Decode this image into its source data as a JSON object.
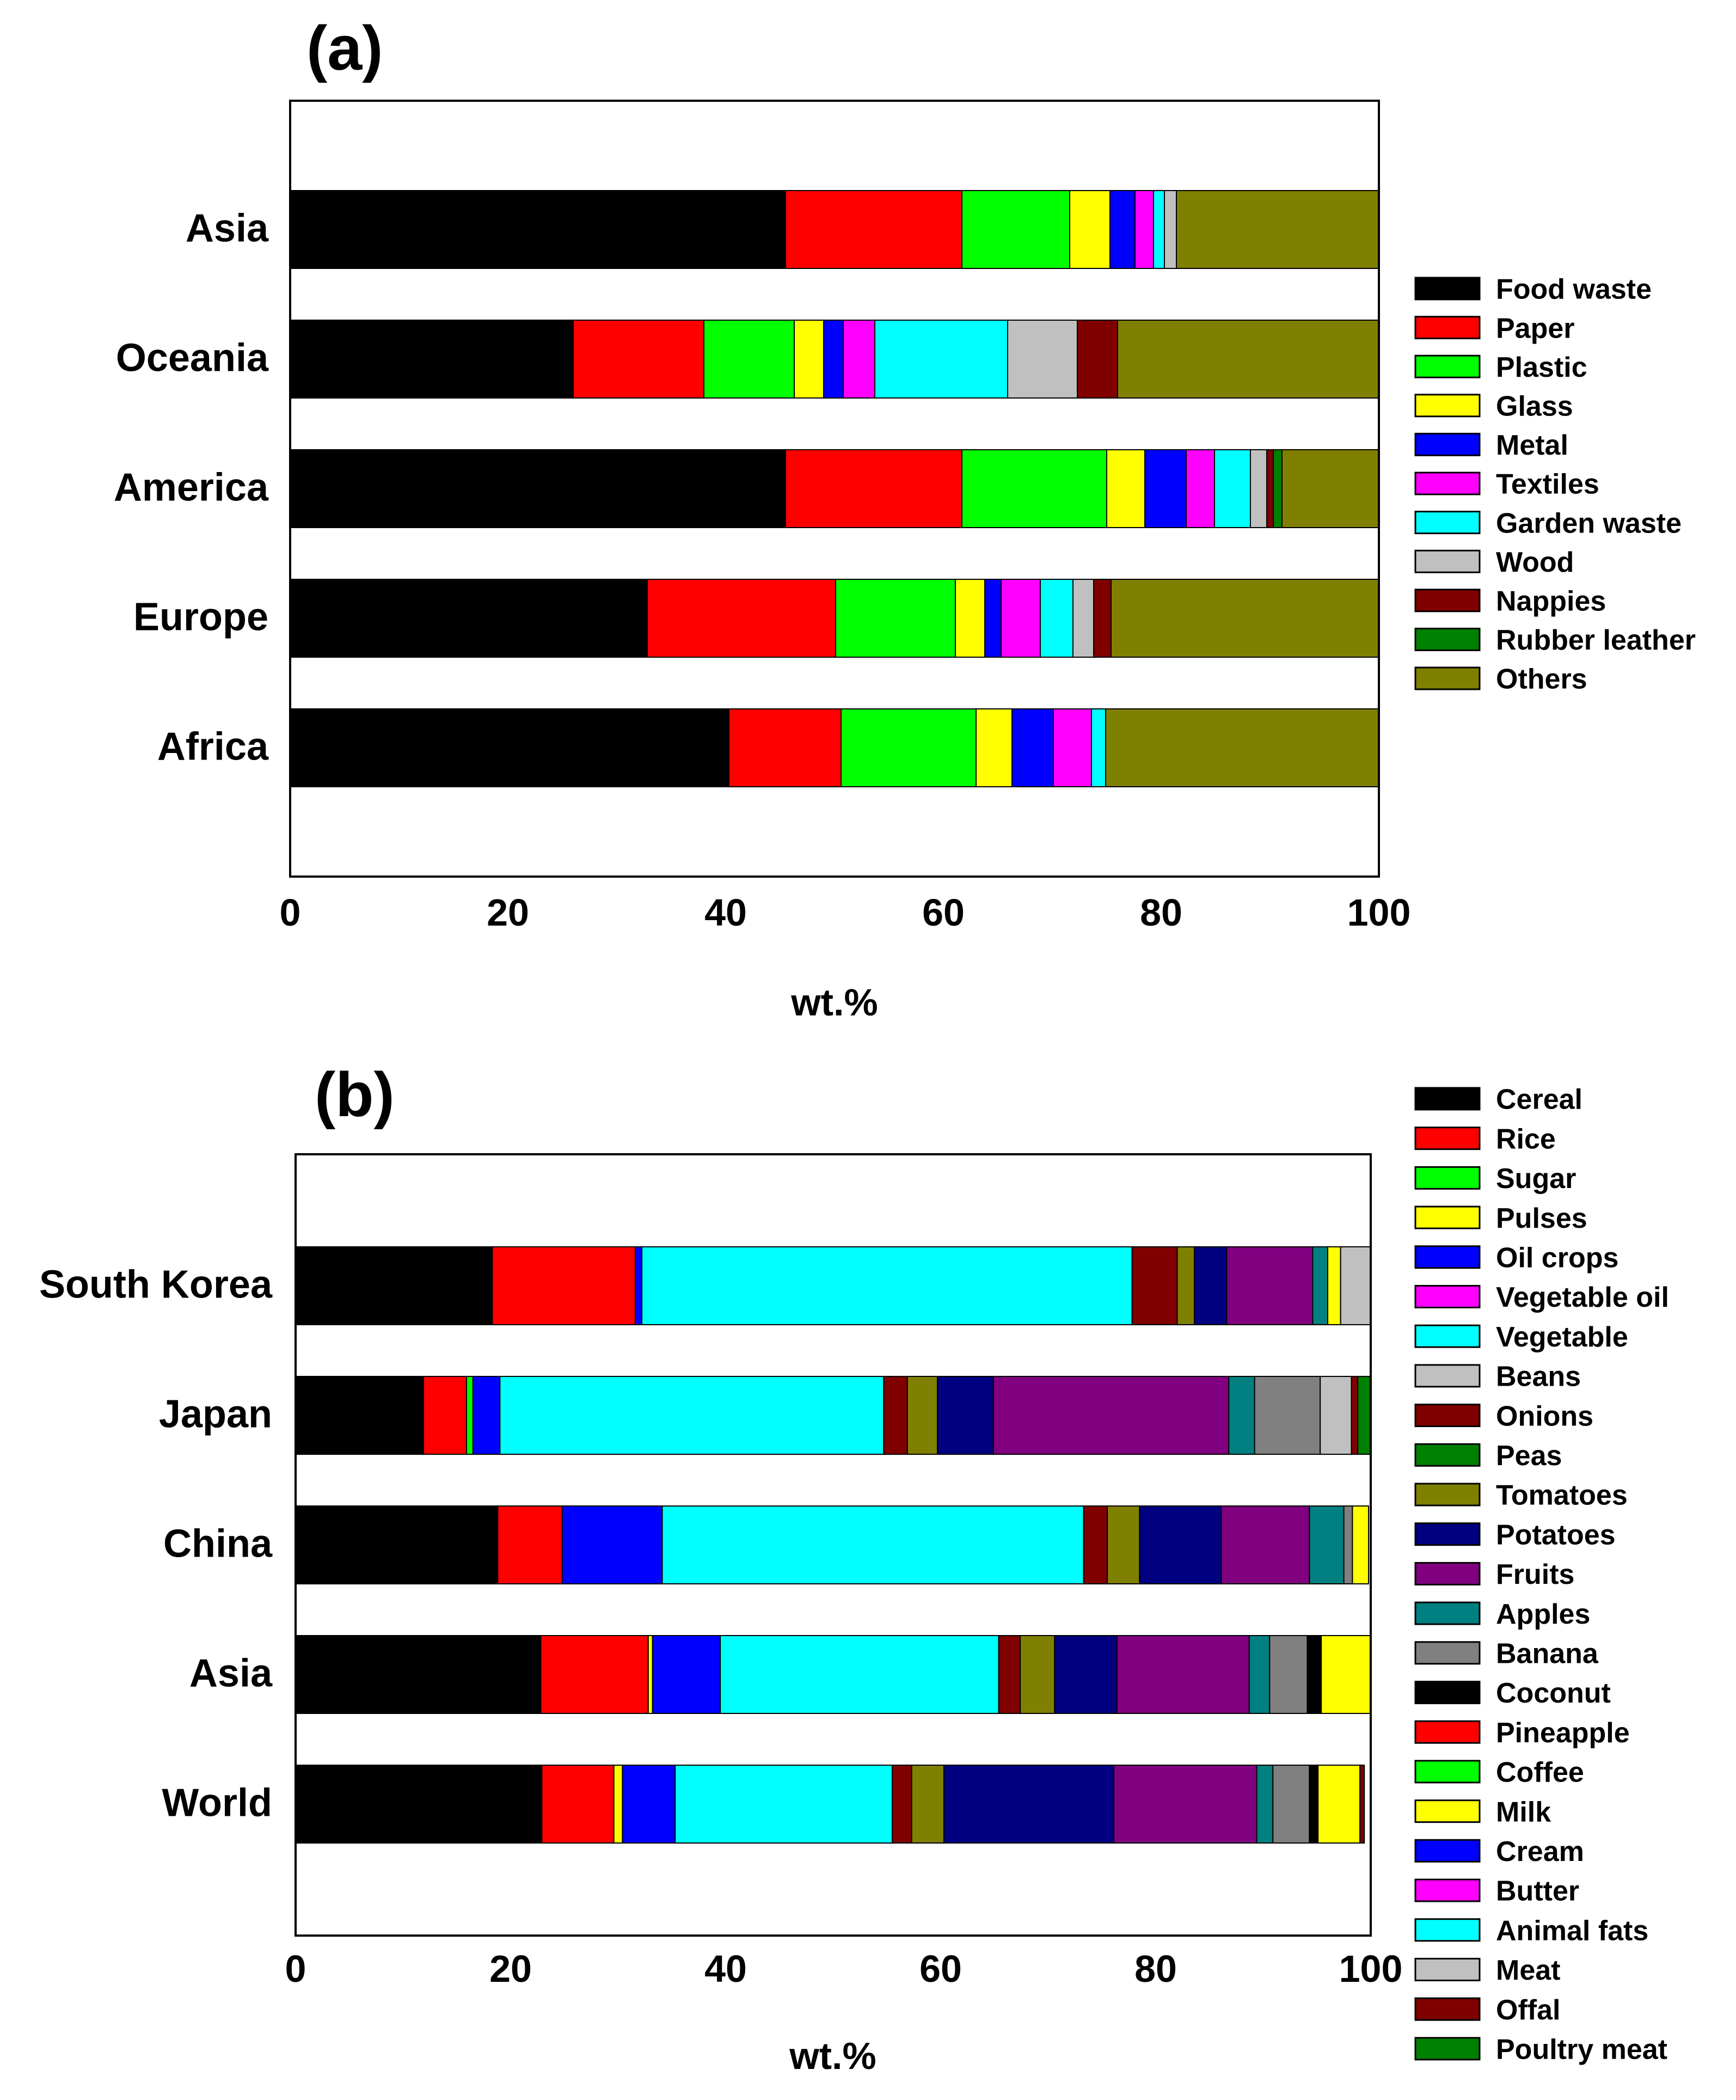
{
  "chart_data": [
    {
      "panel": "(a)",
      "type": "bar",
      "orientation": "horizontal",
      "stacked": true,
      "title": "",
      "xlabel": "wt.%",
      "ylabel": "",
      "xlim": [
        0,
        100
      ],
      "xticks": [
        "0",
        "20",
        "40",
        "60",
        "80",
        "100"
      ],
      "categories": [
        "Asia",
        "Oceania",
        "America",
        "Europe",
        "Africa"
      ],
      "series": [
        {
          "name": "Food waste",
          "color": "#000000",
          "values": [
            45.5,
            26.0,
            45.5,
            32.8,
            40.3
          ]
        },
        {
          "name": "Paper",
          "color": "#ff0000",
          "values": [
            16.2,
            12.0,
            16.2,
            17.3,
            10.3
          ]
        },
        {
          "name": "Plastic",
          "color": "#00ff00",
          "values": [
            9.9,
            8.3,
            13.3,
            11.0,
            12.4
          ]
        },
        {
          "name": "Glass",
          "color": "#ffff00",
          "values": [
            3.7,
            2.7,
            3.5,
            2.7,
            3.3
          ]
        },
        {
          "name": "Metal",
          "color": "#0000ff",
          "values": [
            2.3,
            1.8,
            3.8,
            1.5,
            3.8
          ]
        },
        {
          "name": "Textiles",
          "color": "#ff00ff",
          "values": [
            1.7,
            2.9,
            2.6,
            3.6,
            3.5
          ]
        },
        {
          "name": "Garden waste",
          "color": "#00ffff",
          "values": [
            1.0,
            12.2,
            3.3,
            3.0,
            1.3
          ]
        },
        {
          "name": "Wood",
          "color": "#c0c0c0",
          "values": [
            1.1,
            6.4,
            1.5,
            1.9,
            0.0
          ]
        },
        {
          "name": "Nappies",
          "color": "#800000",
          "values": [
            0.0,
            3.7,
            0.6,
            1.6,
            0.0
          ]
        },
        {
          "name": "Rubber leather",
          "color": "#008000",
          "values": [
            0.0,
            0.0,
            0.8,
            0.0,
            0.0
          ]
        },
        {
          "name": "Others",
          "color": "#808000",
          "values": [
            18.6,
            24.0,
            8.9,
            24.6,
            25.1
          ]
        }
      ]
    },
    {
      "panel": "(b)",
      "type": "bar",
      "orientation": "horizontal",
      "stacked": true,
      "title": "",
      "xlabel": "wt.%",
      "ylabel": "",
      "xlim": [
        0,
        100
      ],
      "xticks": [
        "0",
        "20",
        "40",
        "60",
        "80",
        "100"
      ],
      "categories": [
        "South Korea",
        "Japan",
        "China",
        "Asia",
        "World"
      ],
      "series": [
        {
          "name": "Cereal",
          "color": "#000000",
          "values": [
            18.3,
            11.9,
            18.8,
            22.8,
            22.9
          ]
        },
        {
          "name": "Rice",
          "color": "#ff0000",
          "values": [
            13.3,
            4.0,
            6.0,
            10.0,
            6.7
          ]
        },
        {
          "name": "Sugar",
          "color": "#00ff00",
          "values": [
            0.0,
            0.6,
            0.0,
            0.0,
            0.0
          ]
        },
        {
          "name": "Pulses",
          "color": "#ffff00",
          "values": [
            0.0,
            0.0,
            0.0,
            0.4,
            0.8
          ]
        },
        {
          "name": "Oil crops",
          "color": "#0000ff",
          "values": [
            0.6,
            2.5,
            9.3,
            6.3,
            4.9
          ]
        },
        {
          "name": "Vegetable oil",
          "color": "#ff00ff",
          "values": [
            0.0,
            0.0,
            0.0,
            0.0,
            0.0
          ]
        },
        {
          "name": "Vegetable",
          "color": "#00ffff",
          "values": [
            45.6,
            35.7,
            39.2,
            25.9,
            20.2
          ]
        },
        {
          "name": "Beans",
          "color": "#c0c0c0",
          "values": [
            0.0,
            0.0,
            0.0,
            0.0,
            0.0
          ]
        },
        {
          "name": "Onions",
          "color": "#800000",
          "values": [
            4.2,
            2.2,
            2.2,
            2.0,
            1.8
          ]
        },
        {
          "name": "Peas",
          "color": "#008000",
          "values": [
            0.0,
            0.0,
            0.0,
            0.0,
            0.0
          ]
        },
        {
          "name": "Tomatoes",
          "color": "#808000",
          "values": [
            1.6,
            2.8,
            3.0,
            3.2,
            3.0
          ]
        },
        {
          "name": "Potatoes",
          "color": "#000080",
          "values": [
            3.0,
            5.2,
            7.6,
            5.8,
            15.8
          ]
        },
        {
          "name": "Fruits",
          "color": "#800080",
          "values": [
            8.0,
            21.9,
            8.2,
            12.3,
            13.3
          ]
        },
        {
          "name": "Apples",
          "color": "#008080",
          "values": [
            1.4,
            2.4,
            3.2,
            1.9,
            1.5
          ]
        },
        {
          "name": "Banana",
          "color": "#808080",
          "values": [
            0.0,
            6.1,
            0.8,
            3.5,
            3.4
          ]
        },
        {
          "name": "Coconut",
          "color": "#000000",
          "values": [
            0.0,
            0.0,
            0.0,
            1.3,
            0.8
          ]
        },
        {
          "name": "Pineapple",
          "color": "#ff0000",
          "values": [
            0.0,
            0.0,
            0.0,
            0.0,
            0.0
          ]
        },
        {
          "name": "Coffee",
          "color": "#00ff00",
          "values": [
            0.0,
            0.0,
            0.0,
            0.0,
            0.0
          ]
        },
        {
          "name": "Milk",
          "color": "#ffff00",
          "values": [
            1.2,
            0.0,
            1.5,
            4.6,
            3.9
          ]
        },
        {
          "name": "Cream",
          "color": "#0000ff",
          "values": [
            0.0,
            0.0,
            0.0,
            0.0,
            0.0
          ]
        },
        {
          "name": "Butter",
          "color": "#ff00ff",
          "values": [
            0.0,
            0.0,
            0.0,
            0.0,
            0.0
          ]
        },
        {
          "name": "Animal fats",
          "color": "#00ffff",
          "values": [
            0.0,
            0.0,
            0.0,
            0.0,
            0.0
          ]
        },
        {
          "name": "Meat",
          "color": "#c0c0c0",
          "values": [
            2.8,
            2.9,
            0.0,
            0.0,
            0.0
          ]
        },
        {
          "name": "Offal",
          "color": "#800000",
          "values": [
            0.0,
            0.6,
            0.0,
            0.0,
            0.4
          ]
        },
        {
          "name": "Poultry meat",
          "color": "#008000",
          "values": [
            0.0,
            1.2,
            0.0,
            0.0,
            0.0
          ]
        }
      ]
    }
  ]
}
